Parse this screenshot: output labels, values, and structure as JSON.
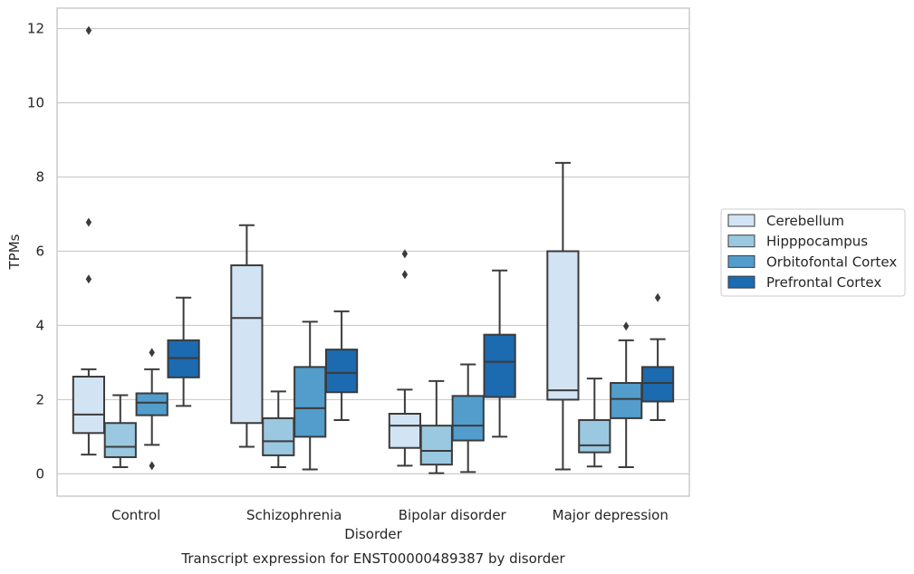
{
  "chart_data": {
    "type": "box",
    "title": "Transcript expression for ENST00000489387 by disorder",
    "xlabel": "Disorder",
    "ylabel": "TPMs",
    "ylim": [
      -0.6,
      12.55
    ],
    "yticks": [
      0,
      2,
      4,
      6,
      8,
      10,
      12
    ],
    "grid": "horizontal",
    "legend_position": "right",
    "categories": [
      "Control",
      "Schizophrenia",
      "Bipolar disorder",
      "Major depression"
    ],
    "series": [
      {
        "name": "Cerebellum",
        "color": "#d2e3f3",
        "boxes": [
          {
            "whisker_low": 0.52,
            "q1": 1.1,
            "median": 1.6,
            "q3": 2.62,
            "whisker_high": 2.82,
            "outliers": [
              5.25,
              6.78,
              11.95
            ]
          },
          {
            "whisker_low": 0.73,
            "q1": 1.37,
            "median": 4.2,
            "q3": 5.62,
            "whisker_high": 6.7,
            "outliers": []
          },
          {
            "whisker_low": 0.22,
            "q1": 0.7,
            "median": 1.3,
            "q3": 1.62,
            "whisker_high": 2.27,
            "outliers": [
              5.37,
              5.93
            ]
          },
          {
            "whisker_low": 0.12,
            "q1": 2.0,
            "median": 2.25,
            "q3": 6.0,
            "whisker_high": 8.38,
            "outliers": []
          }
        ]
      },
      {
        "name": "Hipppocampus",
        "color": "#9ac8e0",
        "boxes": [
          {
            "whisker_low": 0.18,
            "q1": 0.45,
            "median": 0.73,
            "q3": 1.37,
            "whisker_high": 2.12,
            "outliers": []
          },
          {
            "whisker_low": 0.18,
            "q1": 0.5,
            "median": 0.88,
            "q3": 1.5,
            "whisker_high": 2.22,
            "outliers": []
          },
          {
            "whisker_low": 0.02,
            "q1": 0.25,
            "median": 0.62,
            "q3": 1.3,
            "whisker_high": 2.5,
            "outliers": []
          },
          {
            "whisker_low": 0.2,
            "q1": 0.58,
            "median": 0.77,
            "q3": 1.45,
            "whisker_high": 2.57,
            "outliers": []
          }
        ]
      },
      {
        "name": "Orbitofontal Cortex",
        "color": "#529dcc",
        "boxes": [
          {
            "whisker_low": 0.78,
            "q1": 1.58,
            "median": 1.92,
            "q3": 2.17,
            "whisker_high": 2.82,
            "outliers": [
              0.22,
              3.27
            ]
          },
          {
            "whisker_low": 0.12,
            "q1": 1.0,
            "median": 1.77,
            "q3": 2.88,
            "whisker_high": 4.1,
            "outliers": []
          },
          {
            "whisker_low": 0.05,
            "q1": 0.9,
            "median": 1.3,
            "q3": 2.1,
            "whisker_high": 2.95,
            "outliers": []
          },
          {
            "whisker_low": 0.18,
            "q1": 1.5,
            "median": 2.02,
            "q3": 2.45,
            "whisker_high": 3.6,
            "outliers": [
              3.98
            ]
          }
        ]
      },
      {
        "name": "Prefrontal Cortex",
        "color": "#1c6aaf",
        "boxes": [
          {
            "whisker_low": 1.83,
            "q1": 2.6,
            "median": 3.12,
            "q3": 3.6,
            "whisker_high": 4.75,
            "outliers": []
          },
          {
            "whisker_low": 1.45,
            "q1": 2.2,
            "median": 2.72,
            "q3": 3.35,
            "whisker_high": 4.38,
            "outliers": []
          },
          {
            "whisker_low": 1.0,
            "q1": 2.07,
            "median": 3.02,
            "q3": 3.75,
            "whisker_high": 5.48,
            "outliers": []
          },
          {
            "whisker_low": 1.45,
            "q1": 1.95,
            "median": 2.45,
            "q3": 2.88,
            "whisker_high": 3.63,
            "outliers": [
              4.75
            ]
          }
        ]
      }
    ]
  }
}
